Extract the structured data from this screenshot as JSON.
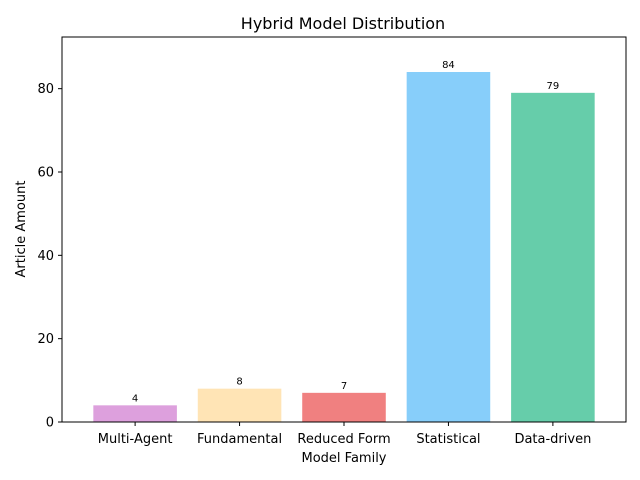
{
  "chart_data": {
    "type": "bar",
    "title": "Hybrid Model Distribution",
    "xlabel": "Model Family",
    "ylabel": "Article Amount",
    "categories": [
      "Multi-Agent",
      "Fundamental",
      "Reduced Form",
      "Statistical",
      "Data-driven"
    ],
    "values": [
      4,
      8,
      7,
      84,
      79
    ],
    "data_labels": [
      "4",
      "8",
      "7",
      "84",
      "79"
    ],
    "colors": [
      "#dda0dd",
      "#ffe4b5",
      "#f08080",
      "#87cefa",
      "#66cdaa"
    ],
    "ylim": [
      0,
      92.4
    ],
    "yticks": [
      0,
      20,
      40,
      60,
      80
    ],
    "ytick_labels": [
      "0",
      "20",
      "40",
      "60",
      "80"
    ],
    "grid": false,
    "legend": "none"
  }
}
